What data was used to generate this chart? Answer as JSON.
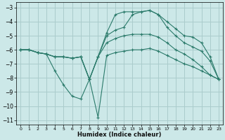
{
  "xlabel": "Humidex (Indice chaleur)",
  "ylabel": "",
  "background_color": "#cce8e8",
  "grid_color": "#aacccc",
  "line_color": "#2a7a6a",
  "xlim": [
    -0.5,
    23.5
  ],
  "ylim": [
    -11.3,
    -2.6
  ],
  "xticks": [
    0,
    1,
    2,
    3,
    4,
    5,
    6,
    7,
    8,
    9,
    10,
    11,
    12,
    13,
    14,
    15,
    16,
    17,
    18,
    19,
    20,
    21,
    22,
    23
  ],
  "yticks": [
    -11,
    -10,
    -9,
    -8,
    -7,
    -6,
    -5,
    -4,
    -3
  ],
  "lines": [
    [
      -6.0,
      -6.0,
      -6.2,
      -6.3,
      -7.5,
      -8.5,
      -9.3,
      -9.5,
      -8.1,
      -10.8,
      -6.4,
      -6.2,
      -6.1,
      -6.0,
      -6.0,
      -5.9,
      -6.1,
      -6.4,
      -6.7,
      -7.0,
      -7.2,
      -7.5,
      -7.8,
      -8.1
    ],
    [
      -6.0,
      -6.0,
      -6.2,
      -6.3,
      -6.5,
      -6.5,
      -6.6,
      -6.5,
      -8.1,
      -6.5,
      -4.8,
      -3.5,
      -3.3,
      -3.3,
      -3.3,
      -3.2,
      -3.5,
      -4.0,
      -4.5,
      -5.0,
      -5.1,
      -5.5,
      -6.5,
      -8.1
    ],
    [
      -6.0,
      -6.0,
      -6.2,
      -6.3,
      -6.5,
      -6.5,
      -6.6,
      -6.5,
      -8.1,
      -6.5,
      -5.0,
      -4.6,
      -4.4,
      -3.5,
      -3.3,
      -3.2,
      -3.5,
      -4.4,
      -5.0,
      -5.5,
      -5.8,
      -6.1,
      -6.8,
      -8.1
    ],
    [
      -6.0,
      -6.0,
      -6.2,
      -6.3,
      -6.5,
      -6.5,
      -6.6,
      -6.5,
      -8.1,
      -6.5,
      -5.5,
      -5.2,
      -5.0,
      -4.9,
      -4.9,
      -4.9,
      -5.1,
      -5.5,
      -6.0,
      -6.3,
      -6.7,
      -7.2,
      -7.8,
      -8.1
    ]
  ]
}
